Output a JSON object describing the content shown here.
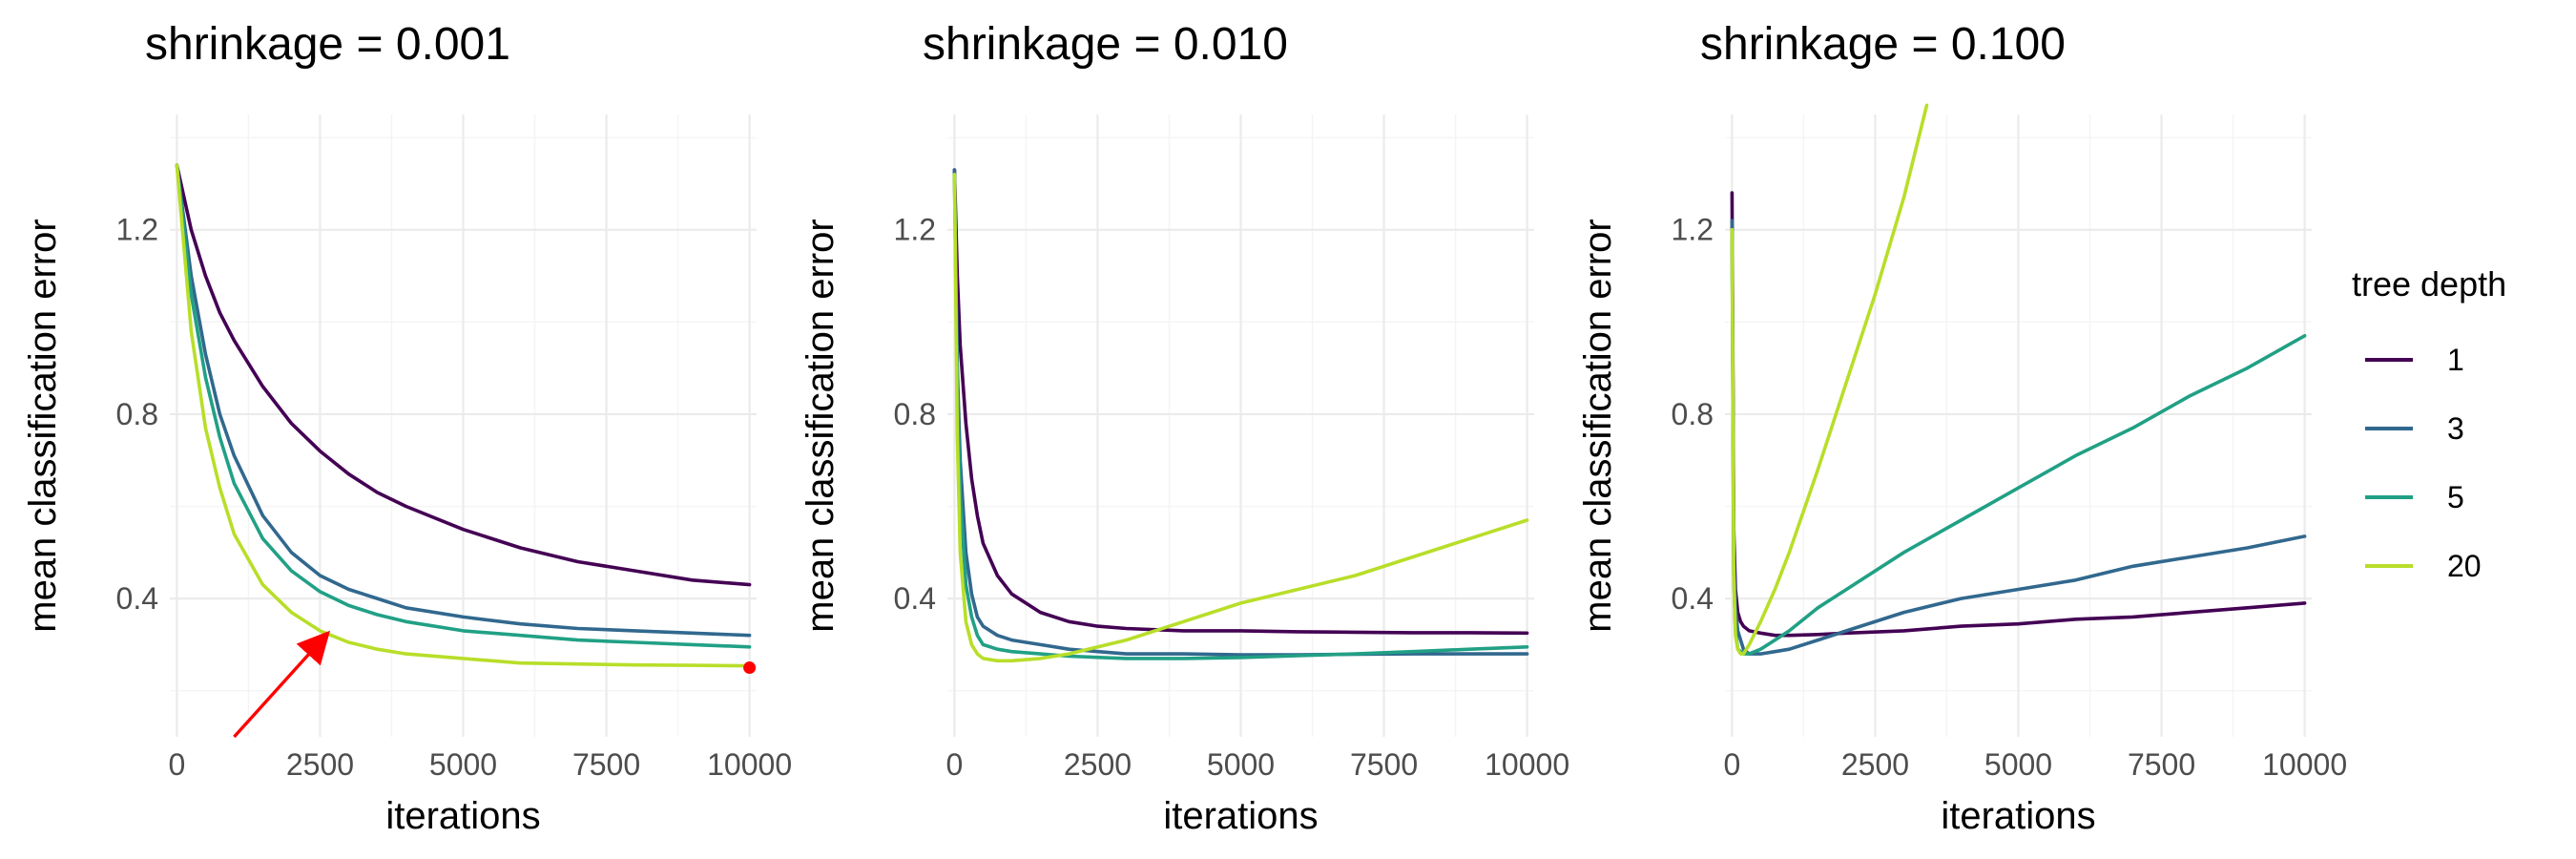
{
  "chart_data": {
    "type": "line",
    "facet_by": "shrinkage",
    "legend": {
      "title": "tree depth",
      "position": "right",
      "entries": [
        {
          "label": "1",
          "color": "#440154"
        },
        {
          "label": "3",
          "color": "#31688E"
        },
        {
          "label": "5",
          "color": "#21A085"
        },
        {
          "label": "20",
          "color": "#B8DE29"
        }
      ]
    },
    "xlabel": "iterations",
    "ylabel": "mean classification error",
    "xlim": [
      0,
      10000
    ],
    "ylim": [
      0.1,
      1.45
    ],
    "x_ticks": [
      0,
      2500,
      5000,
      7500,
      10000
    ],
    "y_ticks": [
      0.4,
      0.8,
      1.2
    ],
    "grid": true,
    "panels": [
      {
        "title": "shrinkage = 0.001",
        "series": [
          {
            "name": "1",
            "x": [
              0,
              250,
              500,
              750,
              1000,
              1500,
              2000,
              2500,
              3000,
              3500,
              4000,
              5000,
              6000,
              7000,
              8000,
              9000,
              10000
            ],
            "y": [
              1.34,
              1.2,
              1.1,
              1.02,
              0.96,
              0.86,
              0.78,
              0.72,
              0.67,
              0.63,
              0.6,
              0.55,
              0.51,
              0.48,
              0.46,
              0.44,
              0.43
            ]
          },
          {
            "name": "3",
            "x": [
              0,
              250,
              500,
              750,
              1000,
              1500,
              2000,
              2500,
              3000,
              3500,
              4000,
              5000,
              6000,
              7000,
              8000,
              9000,
              10000
            ],
            "y": [
              1.34,
              1.1,
              0.93,
              0.8,
              0.71,
              0.58,
              0.5,
              0.45,
              0.42,
              0.4,
              0.38,
              0.36,
              0.345,
              0.335,
              0.33,
              0.325,
              0.32
            ]
          },
          {
            "name": "5",
            "x": [
              0,
              250,
              500,
              750,
              1000,
              1500,
              2000,
              2500,
              3000,
              3500,
              4000,
              5000,
              6000,
              7000,
              8000,
              9000,
              10000
            ],
            "y": [
              1.34,
              1.06,
              0.88,
              0.75,
              0.65,
              0.53,
              0.46,
              0.415,
              0.385,
              0.365,
              0.35,
              0.33,
              0.32,
              0.31,
              0.305,
              0.3,
              0.295
            ]
          },
          {
            "name": "20",
            "x": [
              0,
              250,
              500,
              750,
              1000,
              1500,
              2000,
              2500,
              3000,
              3500,
              4000,
              5000,
              6000,
              7000,
              8000,
              9000,
              10000
            ],
            "y": [
              1.34,
              0.98,
              0.77,
              0.64,
              0.54,
              0.43,
              0.37,
              0.33,
              0.305,
              0.29,
              0.28,
              0.27,
              0.26,
              0.258,
              0.256,
              0.255,
              0.254
            ]
          }
        ],
        "annotations": [
          {
            "type": "arrow",
            "from": [
              1000,
              0.1
            ],
            "to": [
              2600,
              0.32
            ],
            "color": "#FF0000"
          },
          {
            "type": "point",
            "x": 10000,
            "y": 0.25,
            "color": "#FF0000"
          }
        ]
      },
      {
        "title": "shrinkage = 0.010",
        "series": [
          {
            "name": "1",
            "x": [
              0,
              50,
              100,
              200,
              300,
              400,
              500,
              750,
              1000,
              1500,
              2000,
              2500,
              3000,
              4000,
              5000,
              6000,
              7000,
              8000,
              9000,
              10000
            ],
            "y": [
              1.33,
              1.1,
              0.95,
              0.78,
              0.66,
              0.58,
              0.52,
              0.45,
              0.41,
              0.37,
              0.35,
              0.34,
              0.335,
              0.33,
              0.33,
              0.328,
              0.327,
              0.326,
              0.326,
              0.325
            ]
          },
          {
            "name": "3",
            "x": [
              0,
              50,
              100,
              200,
              300,
              400,
              500,
              750,
              1000,
              1500,
              2000,
              3000,
              4000,
              5000,
              6000,
              7000,
              8000,
              9000,
              10000
            ],
            "y": [
              1.33,
              0.9,
              0.7,
              0.5,
              0.41,
              0.36,
              0.34,
              0.32,
              0.31,
              0.3,
              0.29,
              0.28,
              0.28,
              0.278,
              0.278,
              0.279,
              0.28,
              0.28,
              0.28
            ]
          },
          {
            "name": "5",
            "x": [
              0,
              50,
              100,
              200,
              300,
              400,
              500,
              750,
              1000,
              1500,
              2000,
              3000,
              4000,
              5000,
              6000,
              7000,
              8000,
              9000,
              10000
            ],
            "y": [
              1.32,
              0.85,
              0.62,
              0.43,
              0.36,
              0.32,
              0.3,
              0.29,
              0.285,
              0.28,
              0.275,
              0.27,
              0.27,
              0.272,
              0.276,
              0.28,
              0.285,
              0.29,
              0.295
            ]
          },
          {
            "name": "20",
            "x": [
              0,
              50,
              100,
              200,
              300,
              400,
              500,
              750,
              1000,
              1500,
              2000,
              3000,
              4000,
              5000,
              6000,
              7000,
              8000,
              9000,
              10000
            ],
            "y": [
              1.32,
              0.75,
              0.5,
              0.35,
              0.3,
              0.28,
              0.27,
              0.265,
              0.265,
              0.27,
              0.28,
              0.31,
              0.35,
              0.39,
              0.42,
              0.45,
              0.49,
              0.53,
              0.57
            ]
          }
        ]
      },
      {
        "title": "shrinkage = 0.100",
        "series": [
          {
            "name": "1",
            "x": [
              0,
              30,
              60,
              100,
              150,
              200,
              300,
              500,
              750,
              1000,
              1500,
              2000,
              3000,
              4000,
              5000,
              6000,
              7000,
              8000,
              9000,
              10000
            ],
            "y": [
              1.28,
              0.55,
              0.42,
              0.37,
              0.35,
              0.34,
              0.33,
              0.325,
              0.32,
              0.32,
              0.322,
              0.325,
              0.33,
              0.34,
              0.345,
              0.355,
              0.36,
              0.37,
              0.38,
              0.39
            ]
          },
          {
            "name": "3",
            "x": [
              0,
              30,
              60,
              100,
              200,
              300,
              500,
              750,
              1000,
              1500,
              2000,
              3000,
              4000,
              5000,
              6000,
              7000,
              8000,
              9000,
              10000
            ],
            "y": [
              1.22,
              0.5,
              0.38,
              0.33,
              0.29,
              0.28,
              0.28,
              0.285,
              0.29,
              0.31,
              0.33,
              0.37,
              0.4,
              0.42,
              0.44,
              0.47,
              0.49,
              0.51,
              0.535
            ]
          },
          {
            "name": "5",
            "x": [
              0,
              30,
              60,
              100,
              200,
              300,
              500,
              750,
              1000,
              1500,
              2000,
              3000,
              4000,
              5000,
              6000,
              7000,
              8000,
              9000,
              10000
            ],
            "y": [
              1.2,
              0.45,
              0.33,
              0.29,
              0.28,
              0.28,
              0.29,
              0.31,
              0.33,
              0.38,
              0.42,
              0.5,
              0.57,
              0.64,
              0.71,
              0.77,
              0.84,
              0.9,
              0.97
            ]
          },
          {
            "name": "20",
            "x": [
              0,
              30,
              60,
              100,
              150,
              200,
              300,
              500,
              750,
              1000,
              1500,
              2000,
              2500,
              3000,
              3400
            ],
            "y": [
              1.2,
              0.45,
              0.32,
              0.29,
              0.28,
              0.28,
              0.3,
              0.35,
              0.42,
              0.5,
              0.68,
              0.87,
              1.06,
              1.27,
              1.47
            ]
          }
        ]
      }
    ]
  }
}
